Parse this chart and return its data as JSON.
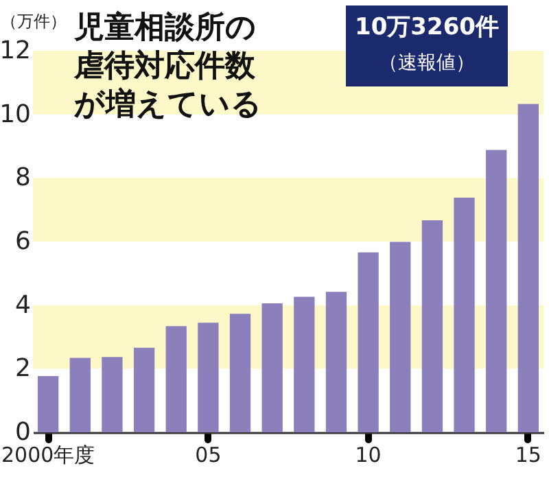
{
  "chart_data": {
    "type": "bar",
    "title": "児童相談所の虐待対応件数が増えている",
    "ylabel": "（万件）",
    "categories": [
      "2000年度",
      null,
      null,
      null,
      null,
      "05",
      null,
      null,
      null,
      null,
      "10",
      null,
      null,
      null,
      null,
      "15"
    ],
    "values": [
      1.77,
      2.34,
      2.37,
      2.66,
      3.34,
      3.45,
      3.73,
      4.06,
      4.26,
      4.42,
      5.66,
      5.99,
      6.67,
      7.38,
      8.88,
      10.33
    ],
    "color": "#8b80bb",
    "ylim": [
      0,
      12
    ],
    "yticks": [
      0,
      2,
      4,
      6,
      8,
      10,
      12
    ],
    "bands": [
      {
        "axis": "y",
        "from": 2,
        "to": 4,
        "color": "#fdf8c8"
      },
      {
        "axis": "y",
        "from": 6,
        "to": 8,
        "color": "#fdf8c8"
      },
      {
        "axis": "y",
        "from": 10,
        "to": 12,
        "color": "#fdf8c8"
      }
    ],
    "annotations": [
      "10万3260件",
      "（速報値）"
    ]
  }
}
